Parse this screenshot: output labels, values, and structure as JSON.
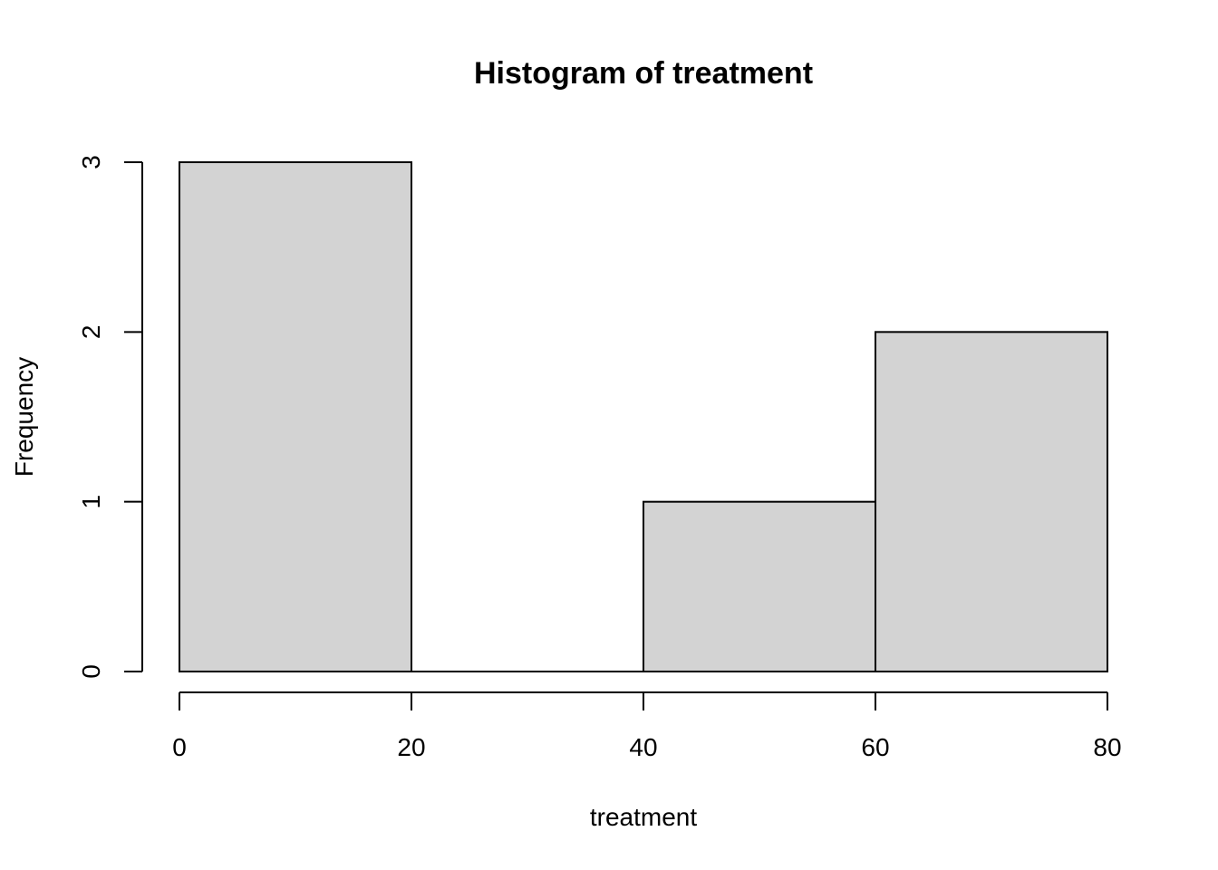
{
  "chart_data": {
    "type": "bar",
    "title": "Histogram of treatment",
    "xlabel": "treatment",
    "ylabel": "Frequency",
    "bins": [
      {
        "start": 0,
        "end": 20,
        "count": 3
      },
      {
        "start": 20,
        "end": 40,
        "count": 0
      },
      {
        "start": 40,
        "end": 60,
        "count": 1
      },
      {
        "start": 60,
        "end": 80,
        "count": 2
      }
    ],
    "xlim": [
      0,
      80
    ],
    "ylim": [
      0,
      3
    ],
    "x_ticks": [
      "0",
      "20",
      "40",
      "60",
      "80"
    ],
    "y_ticks": [
      "0",
      "1",
      "2",
      "3"
    ],
    "bar_color": "#d3d3d3",
    "grid": false,
    "legend": "none"
  }
}
